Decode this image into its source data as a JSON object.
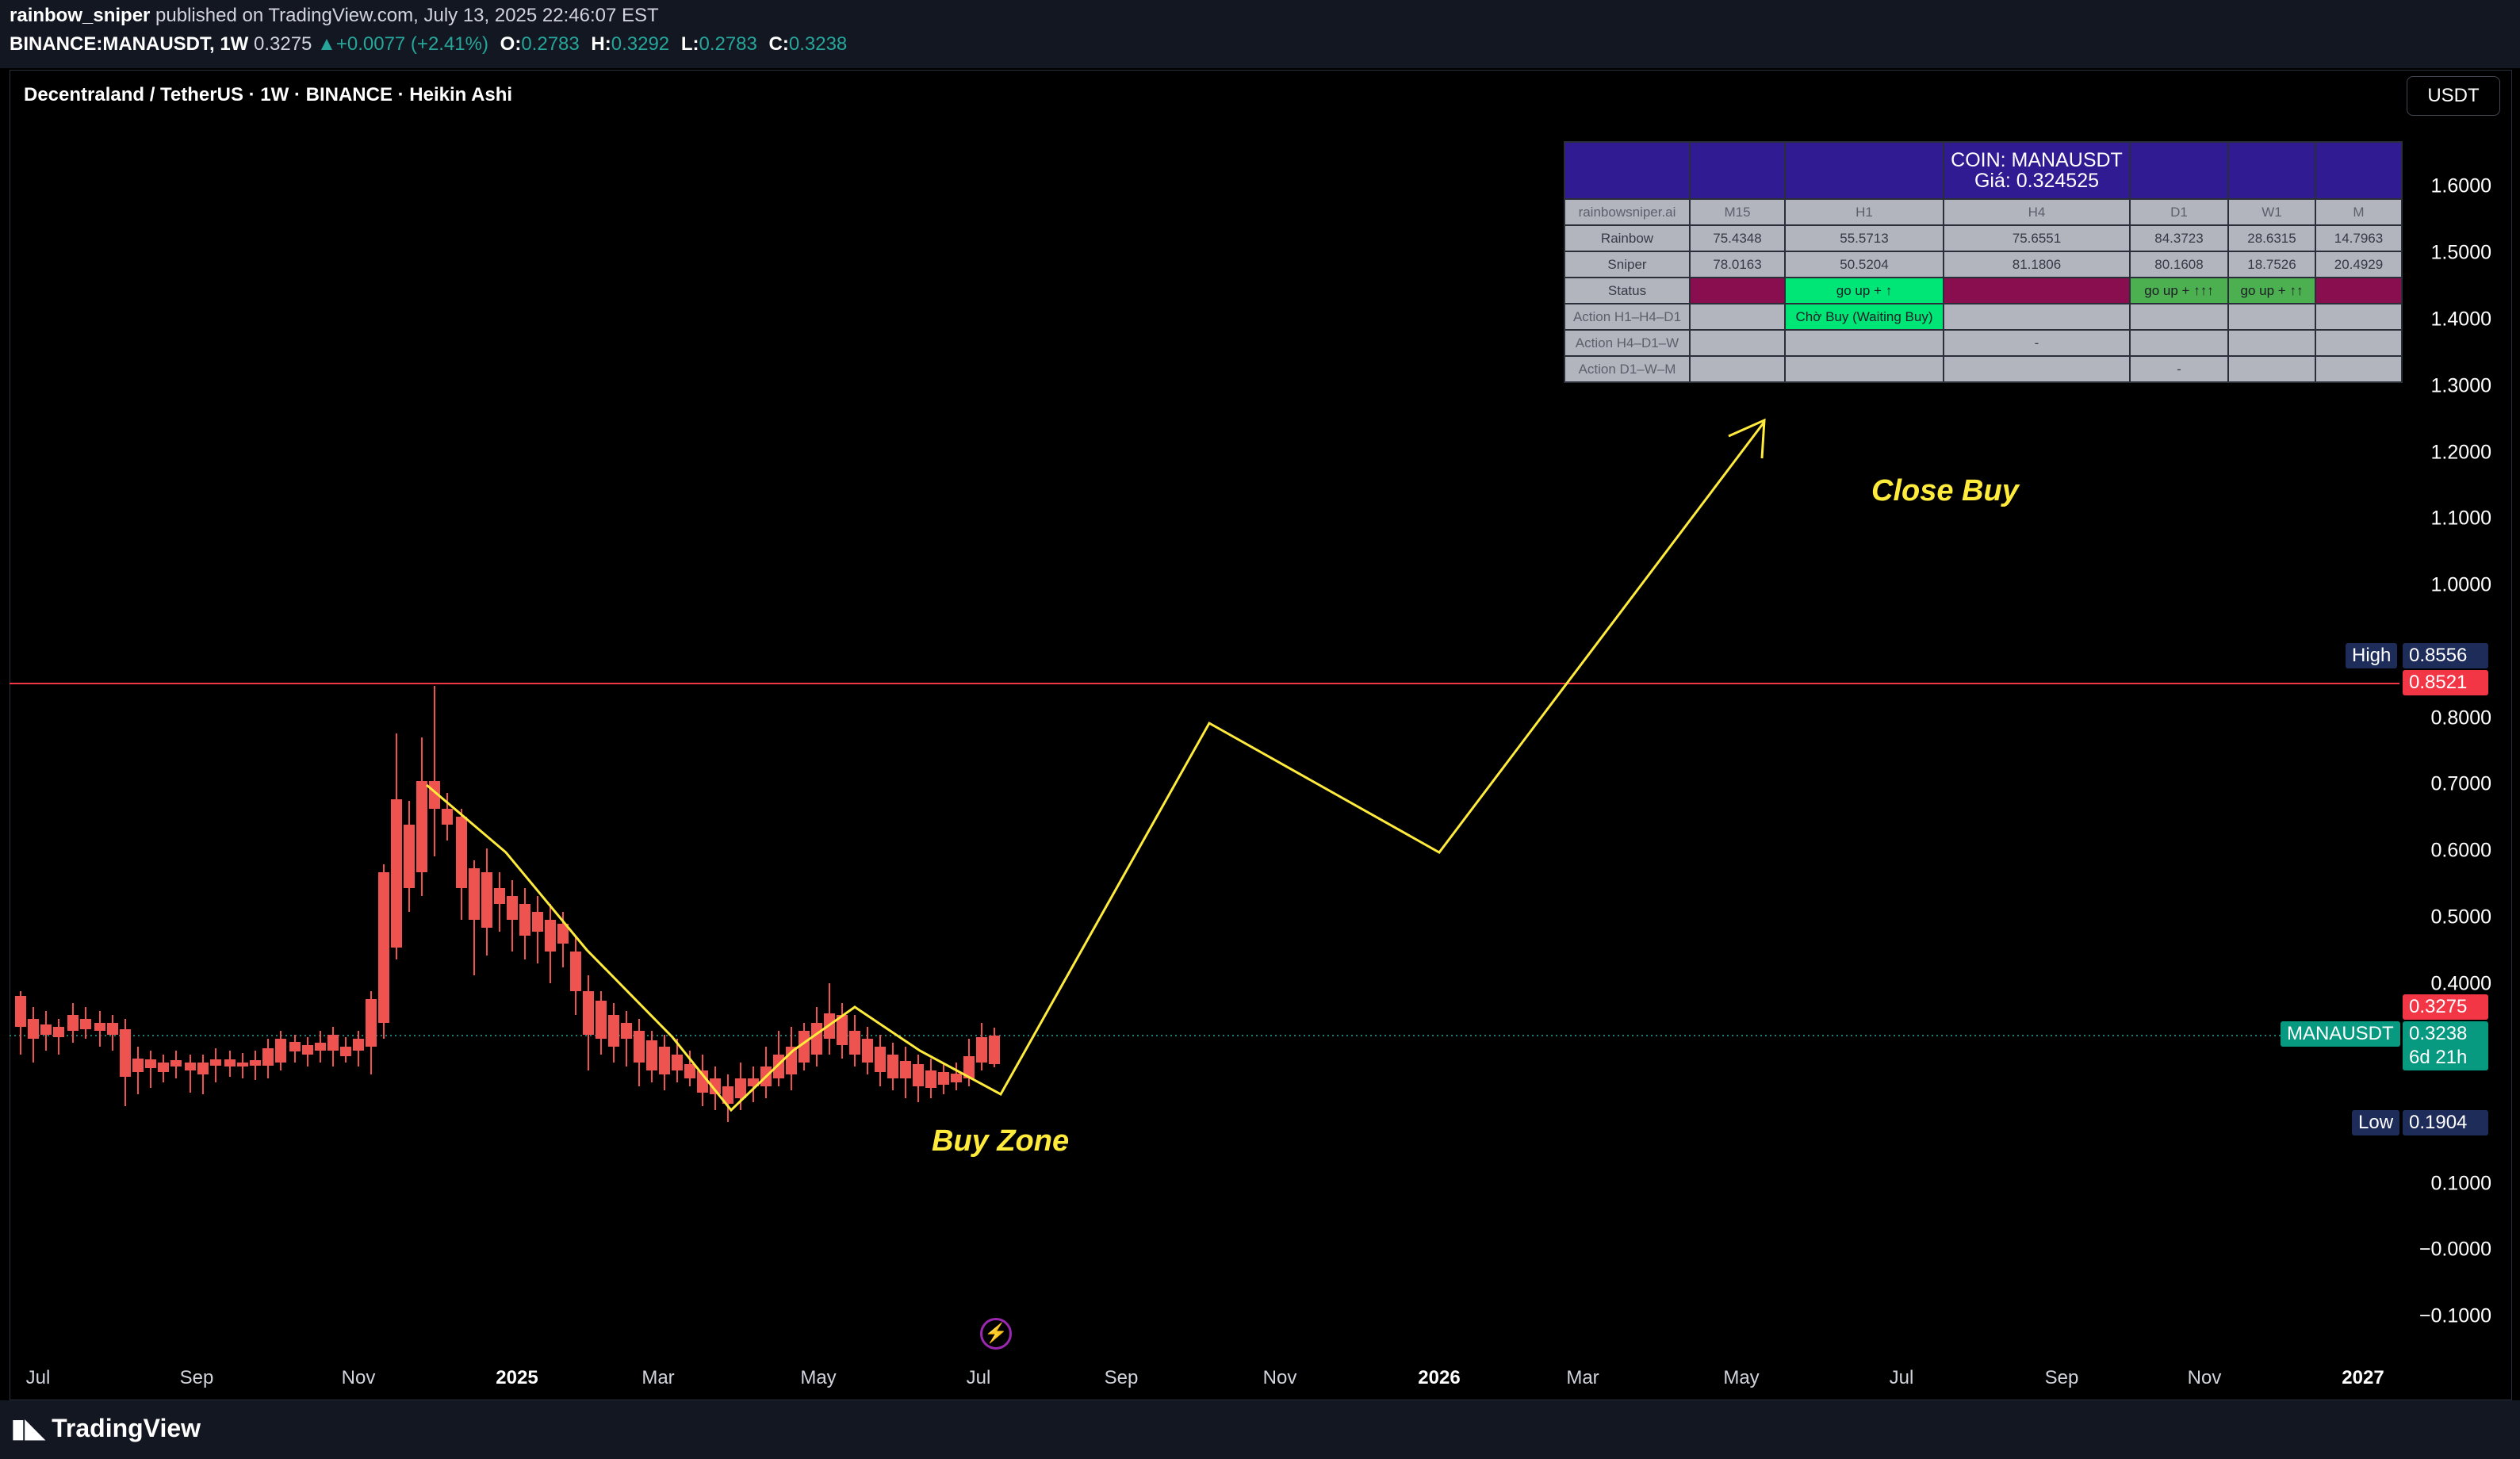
{
  "header": {
    "author": "rainbow_sniper",
    "published_text": "published on TradingView.com, July 13, 2025 22:46:07 EST",
    "symbol": "BINANCE:MANAUSDT, 1W",
    "last": "0.3275",
    "change": "+0.0077 (+2.41%)",
    "o_label": "O:",
    "o": "0.2783",
    "h_label": "H:",
    "h": "0.3292",
    "l_label": "L:",
    "l": "0.2783",
    "c_label": "C:",
    "c": "0.3238"
  },
  "chart_title": "Decentraland / TetherUS · 1W · BINANCE · Heikin Ashi",
  "currency_button": "USDT",
  "price_axis": [
    "1.6000",
    "1.5000",
    "1.4000",
    "1.3000",
    "1.2000",
    "1.1000",
    "1.0000",
    "0.8000",
    "0.7000",
    "0.6000",
    "0.5000",
    "0.4000",
    "0.1000",
    "−0.0000",
    "−0.1000"
  ],
  "price_tags": {
    "high_label": "High",
    "high": "0.8556",
    "hline": "0.8521",
    "last": "0.3275",
    "symbol_label": "MANAUSDT",
    "close": "0.3238",
    "countdown": "6d 21h",
    "low_label": "Low",
    "low": "0.1904"
  },
  "time_axis": [
    {
      "label": "Jul",
      "bold": false
    },
    {
      "label": "Sep",
      "bold": false
    },
    {
      "label": "Nov",
      "bold": false
    },
    {
      "label": "2025",
      "bold": true
    },
    {
      "label": "Mar",
      "bold": false
    },
    {
      "label": "May",
      "bold": false
    },
    {
      "label": "Jul",
      "bold": false
    },
    {
      "label": "Sep",
      "bold": false
    },
    {
      "label": "Nov",
      "bold": false
    },
    {
      "label": "2026",
      "bold": true
    },
    {
      "label": "Mar",
      "bold": false
    },
    {
      "label": "May",
      "bold": false
    },
    {
      "label": "Jul",
      "bold": false
    },
    {
      "label": "Sep",
      "bold": false
    },
    {
      "label": "Nov",
      "bold": false
    },
    {
      "label": "2027",
      "bold": true
    }
  ],
  "annotations": {
    "buy_zone": "Buy Zone",
    "close_buy": "Close Buy"
  },
  "table": {
    "coin_line": "COIN: MANAUSDT",
    "price_line": "Giá: 0.324525",
    "corner": "rainbowsniper.ai",
    "timeframes": [
      "M15",
      "H1",
      "H4",
      "D1",
      "W1",
      "M"
    ],
    "rows": [
      {
        "label": "Rainbow",
        "cells": [
          "75.4348",
          "55.5713",
          "75.6551",
          "84.3723",
          "28.6315",
          "14.7963"
        ]
      },
      {
        "label": "Sniper",
        "cells": [
          "78.0163",
          "50.5204",
          "81.1806",
          "80.1608",
          "18.7526",
          "20.4929"
        ]
      }
    ],
    "status_label": "Status",
    "status": [
      "",
      "go up + ↑",
      "",
      "go up + ↑↑↑",
      "go up + ↑↑",
      ""
    ],
    "action1_label": "Action H1–H4–D1",
    "action1": [
      "",
      "Chờ Buy (Waiting Buy)",
      "",
      "",
      "",
      ""
    ],
    "action2_label": "Action H4–D1–W",
    "action2": [
      "",
      "",
      "-",
      "",
      "",
      ""
    ],
    "action3_label": "Action D1–W–M",
    "action3": [
      "",
      "",
      "",
      "-",
      "",
      ""
    ]
  },
  "footer_logo": "TradingView",
  "colors": {
    "up": "#26a69a",
    "down": "#ef5350",
    "projection": "#ffeb3b",
    "hline": "#f23645",
    "table_header": "#311b92"
  }
}
